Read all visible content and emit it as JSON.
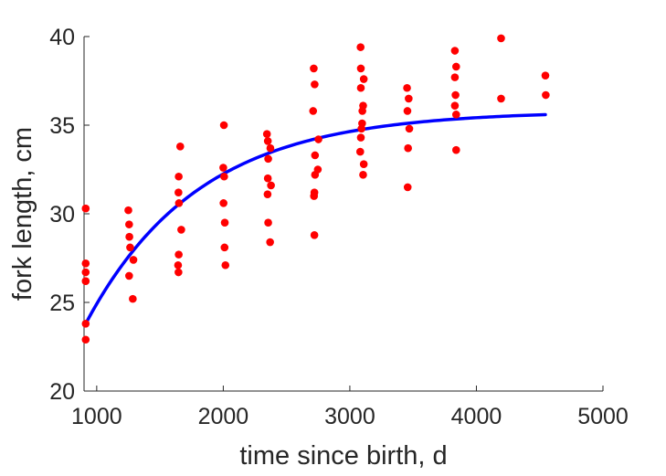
{
  "chart_data": {
    "type": "scatter",
    "xlabel": "time since birth, d",
    "ylabel": "fork length, cm",
    "xlim": [
      900,
      5000
    ],
    "ylim": [
      20,
      40
    ],
    "xticks": [
      "1000",
      "2000",
      "3000",
      "4000",
      "5000"
    ],
    "yticks": [
      "20",
      "25",
      "30",
      "35",
      "40"
    ],
    "grid": false,
    "colors": {
      "points": "#ff0000",
      "fit": "#0000ff",
      "axes": "#262626"
    },
    "series": [
      {
        "type": "scatter",
        "points": [
          [
            913,
            30.3
          ],
          [
            913,
            27.2
          ],
          [
            913,
            26.7
          ],
          [
            913,
            26.2
          ],
          [
            913,
            23.8
          ],
          [
            913,
            22.9
          ],
          [
            1250,
            30.2
          ],
          [
            1256,
            29.4
          ],
          [
            1258,
            28.7
          ],
          [
            1264,
            28.1
          ],
          [
            1256,
            26.5
          ],
          [
            1290,
            27.4
          ],
          [
            1285,
            25.2
          ],
          [
            1660,
            33.8
          ],
          [
            1648,
            32.1
          ],
          [
            1646,
            31.2
          ],
          [
            1650,
            30.6
          ],
          [
            1668,
            29.1
          ],
          [
            1648,
            27.7
          ],
          [
            1643,
            27.1
          ],
          [
            1646,
            26.7
          ],
          [
            2000,
            32.6
          ],
          [
            2005,
            35.0
          ],
          [
            2007,
            32.1
          ],
          [
            2002,
            30.6
          ],
          [
            2012,
            29.5
          ],
          [
            2010,
            28.1
          ],
          [
            2017,
            27.1
          ],
          [
            2345,
            34.5
          ],
          [
            2352,
            34.1
          ],
          [
            2372,
            33.7
          ],
          [
            2355,
            33.1
          ],
          [
            2352,
            32.0
          ],
          [
            2377,
            31.6
          ],
          [
            2350,
            31.1
          ],
          [
            2355,
            29.5
          ],
          [
            2370,
            28.4
          ],
          [
            2715,
            38.2
          ],
          [
            2722,
            37.3
          ],
          [
            2710,
            35.8
          ],
          [
            2752,
            34.2
          ],
          [
            2725,
            33.3
          ],
          [
            2747,
            32.5
          ],
          [
            2725,
            32.2
          ],
          [
            2720,
            31.2
          ],
          [
            2717,
            31.0
          ],
          [
            2720,
            28.8
          ],
          [
            3085,
            39.4
          ],
          [
            3087,
            38.2
          ],
          [
            3110,
            37.6
          ],
          [
            3087,
            37.1
          ],
          [
            3105,
            36.1
          ],
          [
            3099,
            35.8
          ],
          [
            3097,
            35.1
          ],
          [
            3092,
            34.8
          ],
          [
            3087,
            34.3
          ],
          [
            3082,
            33.5
          ],
          [
            3110,
            32.8
          ],
          [
            3105,
            32.2
          ],
          [
            3452,
            37.1
          ],
          [
            3465,
            36.5
          ],
          [
            3455,
            35.8
          ],
          [
            3470,
            34.8
          ],
          [
            3460,
            33.7
          ],
          [
            3457,
            31.5
          ],
          [
            3830,
            39.2
          ],
          [
            3840,
            38.3
          ],
          [
            3830,
            37.7
          ],
          [
            3835,
            36.7
          ],
          [
            3830,
            36.1
          ],
          [
            3840,
            35.6
          ],
          [
            3840,
            33.6
          ],
          [
            4195,
            39.9
          ],
          [
            4195,
            36.5
          ],
          [
            4545,
            37.8
          ],
          [
            4548,
            36.7
          ]
        ]
      },
      {
        "type": "line",
        "model": {
          "Linf": 35.8,
          "L0": 23.8,
          "x0": 913,
          "k": 0.00112,
          "x_end": 4545
        }
      }
    ]
  }
}
